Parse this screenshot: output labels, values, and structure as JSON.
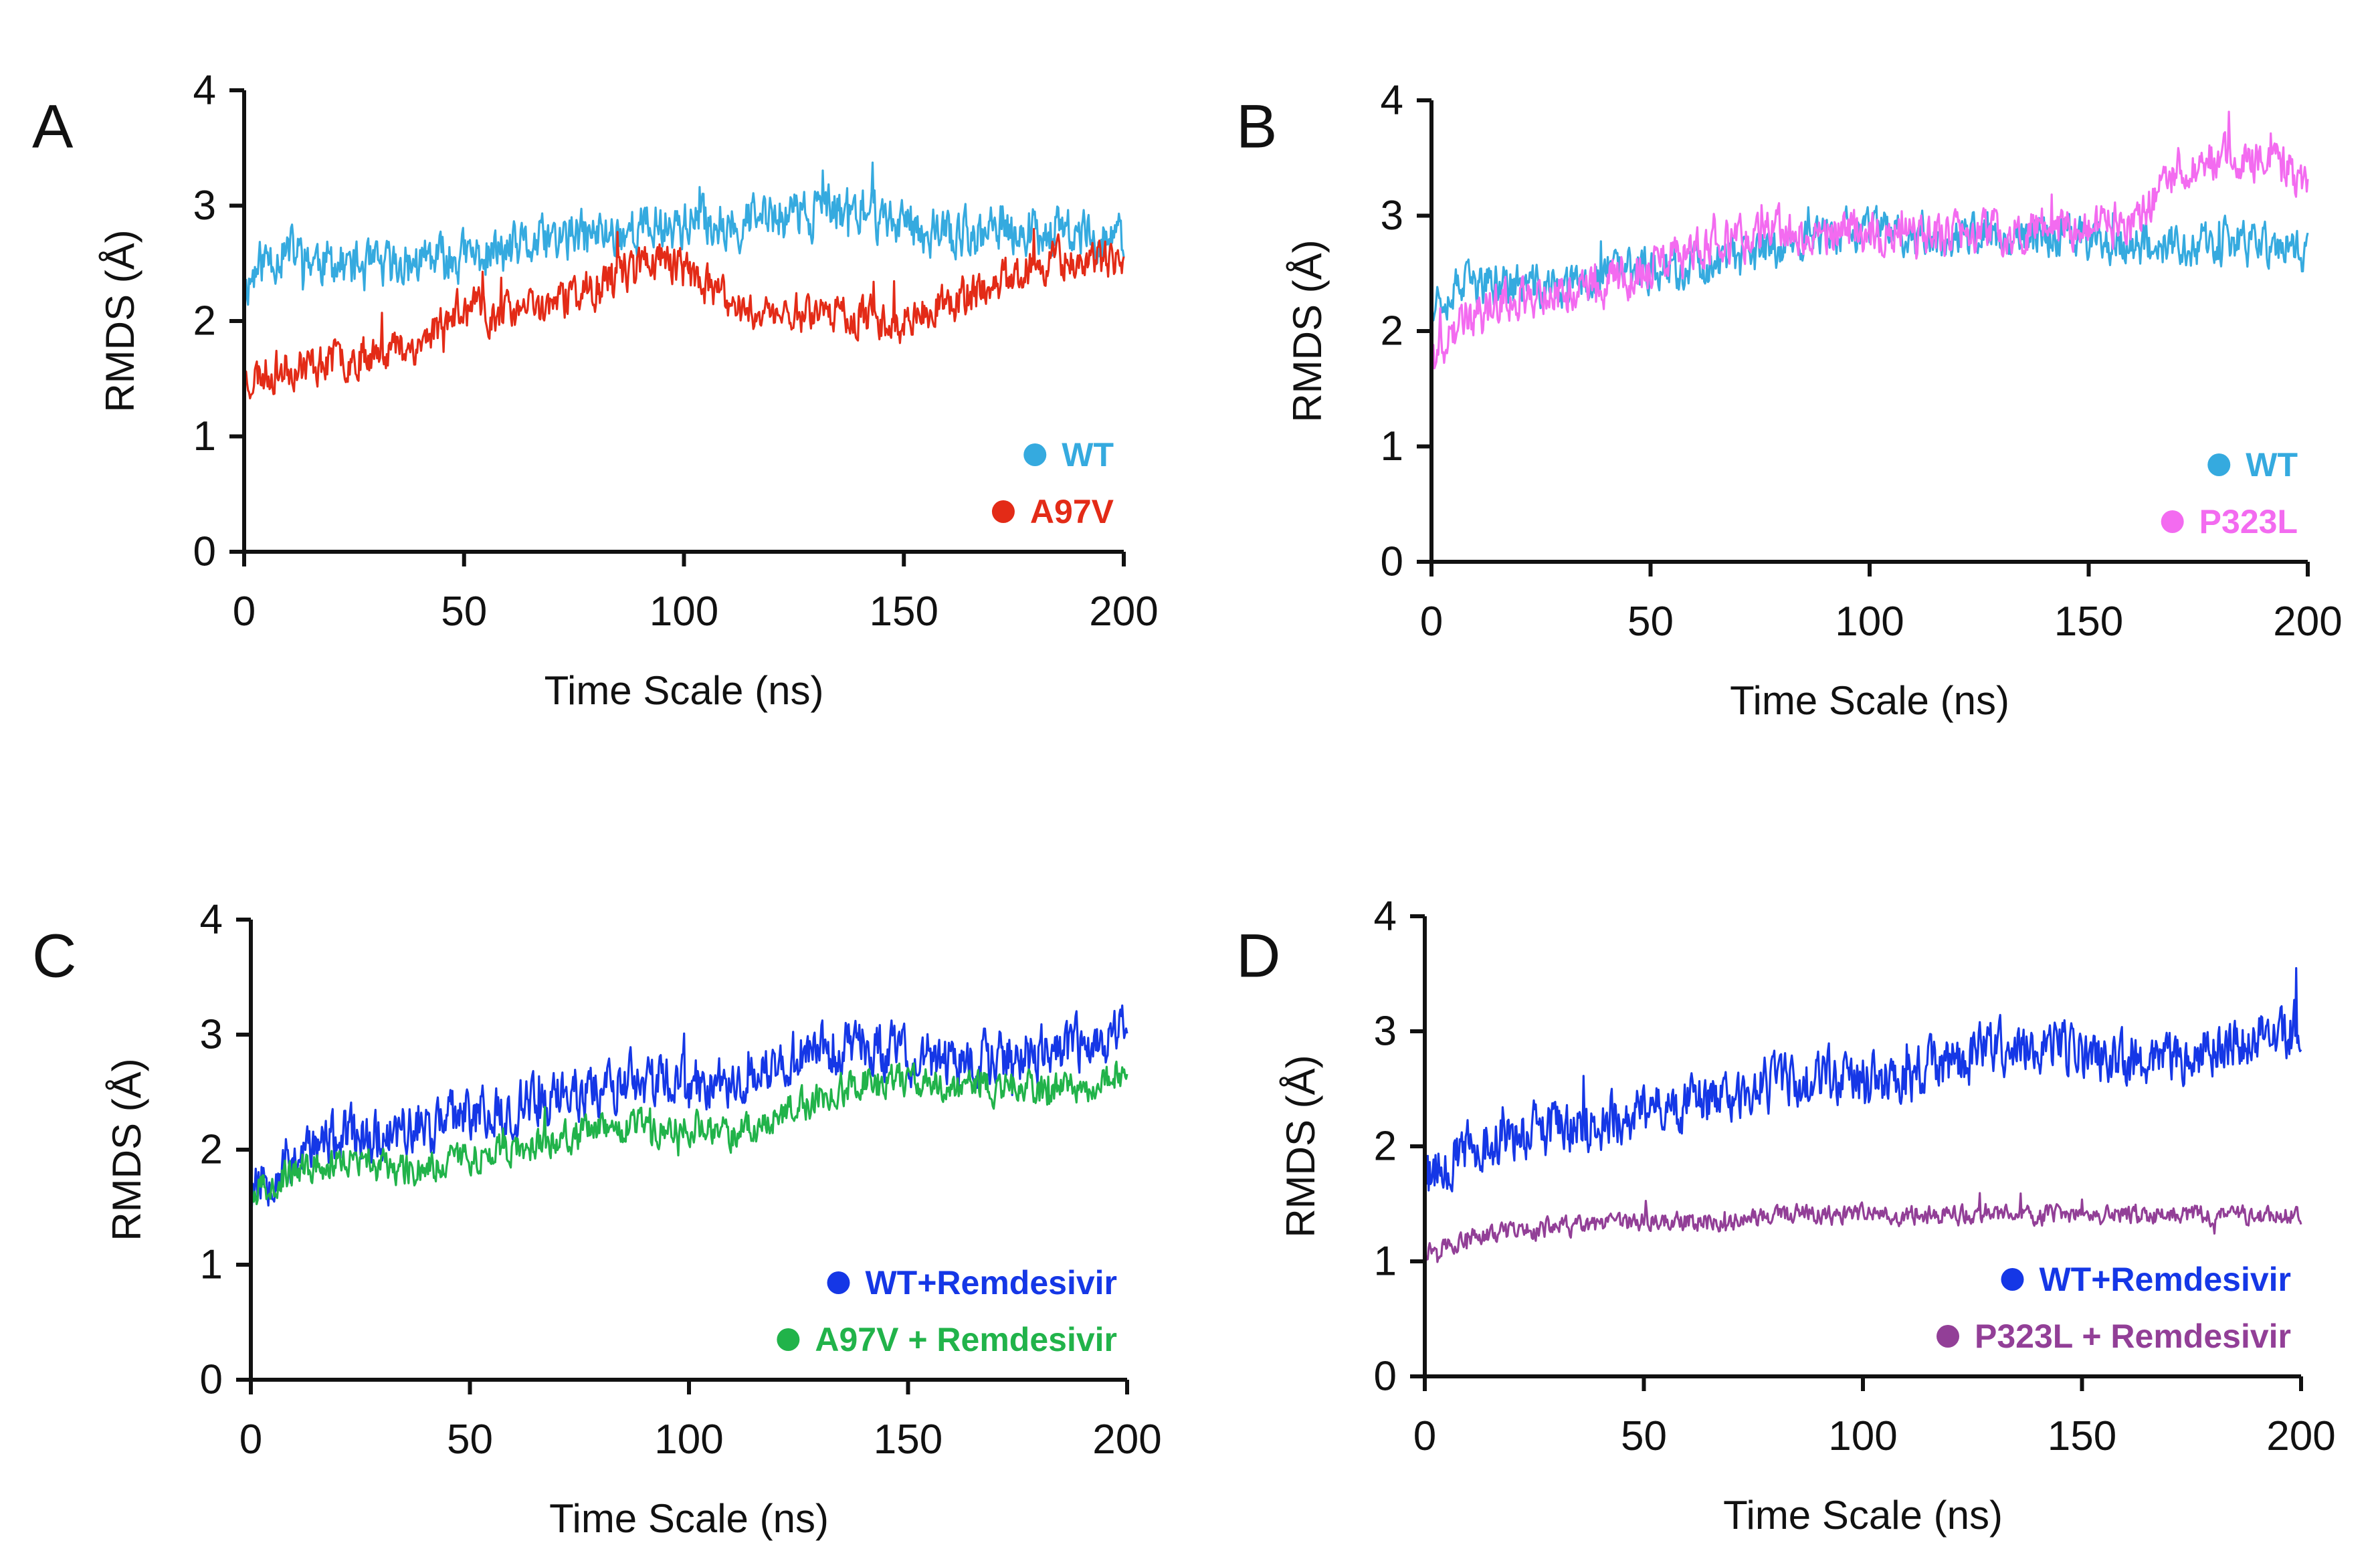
{
  "chart_data": [
    {
      "panel_label": "A",
      "type": "line",
      "xlabel": "Time Scale (ns)",
      "ylabel": "RMDS (Å)",
      "xlim": [
        0,
        200
      ],
      "ylim": [
        0,
        4
      ],
      "x_ticks": [
        0,
        50,
        100,
        150,
        200
      ],
      "y_ticks": [
        0,
        1,
        2,
        3,
        4
      ],
      "legend_position": "bottom-right",
      "grid": false,
      "series": [
        {
          "name": "WT",
          "color": "#35aadf",
          "noise": 0.18,
          "seed": 11,
          "x": [
            0,
            5,
            10,
            20,
            30,
            40,
            50,
            60,
            70,
            80,
            90,
            100,
            110,
            120,
            130,
            140,
            150,
            160,
            170,
            180,
            190,
            200
          ],
          "y": [
            2.3,
            2.55,
            2.6,
            2.5,
            2.45,
            2.5,
            2.55,
            2.6,
            2.7,
            2.75,
            2.8,
            2.85,
            2.85,
            2.9,
            2.95,
            2.95,
            2.85,
            2.75,
            2.75,
            2.8,
            2.75,
            2.7
          ]
        },
        {
          "name": "A97V",
          "color": "#e32b17",
          "noise": 0.15,
          "seed": 23,
          "x": [
            0,
            5,
            10,
            20,
            30,
            40,
            45,
            50,
            60,
            70,
            80,
            90,
            95,
            100,
            110,
            120,
            130,
            140,
            150,
            160,
            170,
            180,
            190,
            200
          ],
          "y": [
            1.5,
            1.55,
            1.6,
            1.65,
            1.75,
            1.8,
            2.0,
            2.1,
            2.05,
            2.15,
            2.3,
            2.5,
            2.55,
            2.45,
            2.15,
            2.05,
            2.1,
            2.05,
            2.0,
            2.15,
            2.3,
            2.5,
            2.55,
            2.45
          ]
        }
      ]
    },
    {
      "panel_label": "B",
      "type": "line",
      "xlabel": "Time Scale (ns)",
      "ylabel": "RMDS (Å)",
      "xlim": [
        0,
        200
      ],
      "ylim": [
        0,
        4
      ],
      "x_ticks": [
        0,
        50,
        100,
        150,
        200
      ],
      "y_ticks": [
        0,
        1,
        2,
        3,
        4
      ],
      "legend_position": "bottom-right",
      "grid": false,
      "series": [
        {
          "name": "WT",
          "color": "#35aadf",
          "noise": 0.16,
          "seed": 37,
          "x": [
            0,
            10,
            20,
            30,
            40,
            50,
            60,
            70,
            80,
            90,
            100,
            110,
            120,
            130,
            140,
            150,
            160,
            170,
            180,
            190,
            200
          ],
          "y": [
            2.3,
            2.4,
            2.4,
            2.35,
            2.5,
            2.55,
            2.55,
            2.6,
            2.75,
            2.85,
            2.85,
            2.85,
            2.8,
            2.85,
            2.85,
            2.8,
            2.75,
            2.75,
            2.75,
            2.75,
            2.7
          ]
        },
        {
          "name": "P323L",
          "color": "#f36bf0",
          "noise": 0.16,
          "seed": 41,
          "x": [
            0,
            5,
            10,
            20,
            30,
            40,
            50,
            60,
            70,
            80,
            90,
            100,
            110,
            120,
            130,
            140,
            150,
            160,
            165,
            170,
            180,
            190,
            200
          ],
          "y": [
            1.75,
            2.0,
            2.15,
            2.3,
            2.35,
            2.4,
            2.55,
            2.7,
            2.8,
            2.85,
            2.85,
            2.85,
            2.8,
            2.85,
            2.85,
            2.9,
            2.9,
            2.95,
            3.1,
            3.4,
            3.5,
            3.5,
            3.3
          ]
        }
      ]
    },
    {
      "panel_label": "C",
      "type": "line",
      "xlabel": "Time Scale (ns)",
      "ylabel": "RMDS (Å)",
      "xlim": [
        0,
        200
      ],
      "ylim": [
        0,
        4
      ],
      "x_ticks": [
        0,
        50,
        100,
        150,
        200
      ],
      "y_ticks": [
        0,
        1,
        2,
        3,
        4
      ],
      "legend_position": "bottom-right",
      "grid": false,
      "series": [
        {
          "name": "WT+Remdesivir",
          "color": "#1537e6",
          "noise": 0.2,
          "seed": 53,
          "x": [
            0,
            10,
            20,
            30,
            40,
            50,
            60,
            70,
            80,
            90,
            100,
            110,
            120,
            130,
            140,
            150,
            160,
            170,
            180,
            190,
            200
          ],
          "y": [
            1.7,
            1.95,
            2.1,
            2.15,
            2.2,
            2.3,
            2.35,
            2.45,
            2.55,
            2.6,
            2.55,
            2.6,
            2.7,
            2.85,
            2.9,
            2.8,
            2.75,
            2.8,
            2.85,
            2.9,
            3.05
          ]
        },
        {
          "name": "A97V + Remdesivir",
          "color": "#21b34a",
          "noise": 0.12,
          "seed": 67,
          "x": [
            0,
            10,
            20,
            30,
            40,
            50,
            60,
            70,
            80,
            90,
            100,
            110,
            120,
            130,
            140,
            150,
            160,
            170,
            180,
            190,
            200
          ],
          "y": [
            1.65,
            1.8,
            1.9,
            1.85,
            1.85,
            1.95,
            2.0,
            2.1,
            2.15,
            2.2,
            2.2,
            2.15,
            2.3,
            2.45,
            2.6,
            2.6,
            2.55,
            2.55,
            2.5,
            2.55,
            2.7
          ]
        }
      ]
    },
    {
      "panel_label": "D",
      "type": "line",
      "xlabel": "Time Scale (ns)",
      "ylabel": "RMDS (Å)",
      "xlim": [
        0,
        200
      ],
      "ylim": [
        0,
        4
      ],
      "x_ticks": [
        0,
        50,
        100,
        150,
        200
      ],
      "y_ticks": [
        0,
        1,
        2,
        3,
        4
      ],
      "legend_position": "bottom-right",
      "grid": false,
      "series": [
        {
          "name": "WT+Remdesivir",
          "color": "#1537e6",
          "noise": 0.2,
          "seed": 79,
          "x": [
            0,
            10,
            20,
            30,
            40,
            50,
            60,
            70,
            80,
            90,
            100,
            110,
            120,
            130,
            140,
            150,
            160,
            170,
            180,
            190,
            200
          ],
          "y": [
            1.8,
            1.95,
            2.1,
            2.15,
            2.2,
            2.3,
            2.35,
            2.45,
            2.55,
            2.6,
            2.55,
            2.6,
            2.7,
            2.85,
            2.9,
            2.8,
            2.75,
            2.8,
            2.85,
            2.9,
            3.05
          ]
        },
        {
          "name": "P323L + Remdesivir",
          "color": "#923f97",
          "noise": 0.07,
          "seed": 97,
          "x": [
            0,
            10,
            20,
            30,
            40,
            50,
            60,
            70,
            80,
            90,
            100,
            110,
            120,
            130,
            140,
            150,
            160,
            170,
            180,
            190,
            200
          ],
          "y": [
            1.1,
            1.2,
            1.25,
            1.3,
            1.3,
            1.35,
            1.35,
            1.35,
            1.4,
            1.4,
            1.4,
            1.4,
            1.4,
            1.4,
            1.4,
            1.4,
            1.4,
            1.4,
            1.4,
            1.4,
            1.4
          ]
        }
      ]
    }
  ]
}
